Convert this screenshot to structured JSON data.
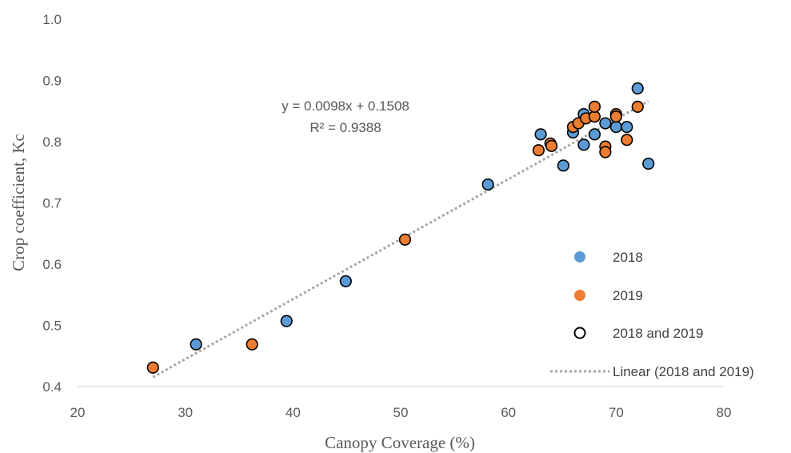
{
  "chart_data": {
    "type": "scatter",
    "xlabel": "Canopy Coverage (%)",
    "ylabel": "Crop coefficient, Kc",
    "xlim": [
      20,
      80
    ],
    "ylim": [
      0.4,
      1.0
    ],
    "x_ticks": [
      "20",
      "30",
      "40",
      "50",
      "60",
      "70",
      "80"
    ],
    "y_ticks": [
      "0.4",
      "0.5",
      "0.6",
      "0.7",
      "0.8",
      "0.9",
      "1.0"
    ],
    "grid": false,
    "legend_position": "right",
    "colors": {
      "2018": "#5B9BD5",
      "2019": "#ED7D31",
      "outline": "#000000",
      "trend": "#A6A6A6"
    },
    "series": [
      {
        "name": "2018",
        "points": [
          [
            31,
            0.469
          ],
          [
            39.4,
            0.507
          ],
          [
            44.9,
            0.572
          ],
          [
            58.1,
            0.73
          ],
          [
            63.0,
            0.812
          ],
          [
            65.1,
            0.761
          ],
          [
            66.0,
            0.815
          ],
          [
            67.0,
            0.845
          ],
          [
            67.0,
            0.795
          ],
          [
            68.0,
            0.812
          ],
          [
            69.0,
            0.83
          ],
          [
            70.0,
            0.824
          ],
          [
            71.0,
            0.824
          ],
          [
            72.0,
            0.887
          ],
          [
            73.0,
            0.764
          ]
        ]
      },
      {
        "name": "2019",
        "points": [
          [
            27.0,
            0.431
          ],
          [
            36.2,
            0.469
          ],
          [
            50.4,
            0.64
          ],
          [
            62.8,
            0.786
          ],
          [
            63.9,
            0.797
          ],
          [
            64.0,
            0.793
          ],
          [
            66.0,
            0.824
          ],
          [
            66.5,
            0.83
          ],
          [
            67.2,
            0.838
          ],
          [
            68.0,
            0.841
          ],
          [
            68.0,
            0.857
          ],
          [
            69.0,
            0.792
          ],
          [
            69.0,
            0.783
          ],
          [
            70.0,
            0.845
          ],
          [
            70.0,
            0.841
          ],
          [
            71.0,
            0.803
          ],
          [
            72.0,
            0.857
          ]
        ]
      }
    ],
    "trendline": {
      "name": "Linear (2018 and 2019)",
      "slope": 0.0098,
      "intercept": 0.1508,
      "x_range": [
        27,
        73
      ]
    },
    "annotation": {
      "equation": "y = 0.0098x + 0.1508",
      "r2": "R² = 0.9388"
    },
    "legend": {
      "entries": [
        {
          "label": "2018",
          "marker": "circle-filled",
          "color": "#5B9BD5"
        },
        {
          "label": "2019",
          "marker": "circle-filled",
          "color": "#ED7D31"
        },
        {
          "label": "2018 and 2019",
          "marker": "circle-open",
          "color": "#000000"
        },
        {
          "label": "Linear (2018 and 2019)",
          "marker": "dotted-line",
          "color": "#A6A6A6"
        }
      ]
    }
  }
}
